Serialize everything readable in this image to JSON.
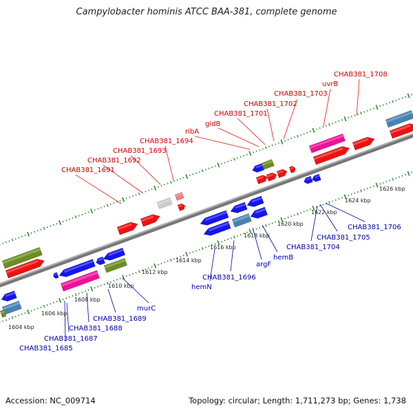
{
  "header": {
    "title": "Campylobacter hominis ATCC BAA-381, complete genome"
  },
  "footer": {
    "accession": "Accession: NC_009714",
    "summary": "Topology: circular; Length: 1,711,273 bp; Genes: 1,738"
  },
  "colors": {
    "forward_label": "#cc0000",
    "reverse_label": "#0000aa",
    "backbone": "#888888",
    "tick_marks": "#2a8a2a",
    "red_gene": "#ee1111",
    "blue_gene": "#1515ee",
    "green_gene": "#6b8e23",
    "pink_gene": "#ee1199",
    "steelblue_gene": "#4682b4",
    "grey_gene": "#cccccc",
    "lightred_gene": "#f08080"
  },
  "scale_ticks": [
    "1604 kbp",
    "1606 kbp",
    "1608 kbp",
    "1610 kbp",
    "1612 kbp",
    "1614 kbp",
    "1616 kbp",
    "1618 kbp",
    "1620 kbp",
    "1622 kbp",
    "1624 kbp",
    "1626 kbp"
  ],
  "forward_labels": [
    "CHAB381_1691",
    "CHAB381_1692",
    "CHAB381_1693",
    "CHAB381_1694",
    "ribA",
    "gidB",
    "CHAB381_1701",
    "CHAB381_1702",
    "CHAB381_1703",
    "uvrB",
    "CHAB381_1708"
  ],
  "reverse_labels": [
    "CHAB381_1685",
    "CHAB381_1687",
    "CHAB381_1688",
    "CHAB381_1689",
    "murC",
    "hemN",
    "CHAB381_1696",
    "argF",
    "hemB",
    "CHAB381_1704",
    "CHAB381_1705",
    "CHAB381_1706"
  ]
}
